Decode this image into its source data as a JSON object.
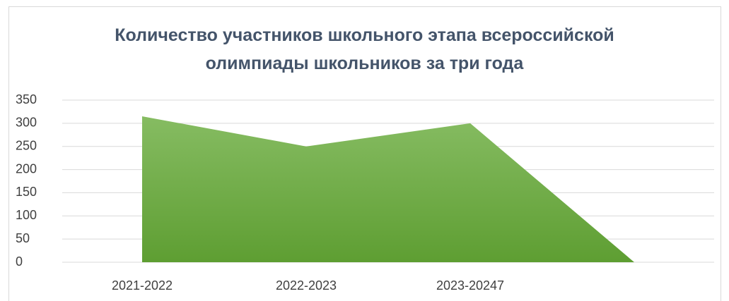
{
  "chart_data": {
    "type": "area",
    "title": "Количество участников школьного этапа всероссийской\nолимпиады школьников за три года",
    "categories": [
      "2021-2022",
      "2022-2023",
      "2023-20247",
      null
    ],
    "values": [
      315,
      250,
      300,
      0
    ],
    "color": "#70ad47",
    "ylim": [
      0,
      350
    ],
    "yticks": [
      0,
      50,
      100,
      150,
      200,
      250,
      300,
      350
    ],
    "grid": true
  }
}
